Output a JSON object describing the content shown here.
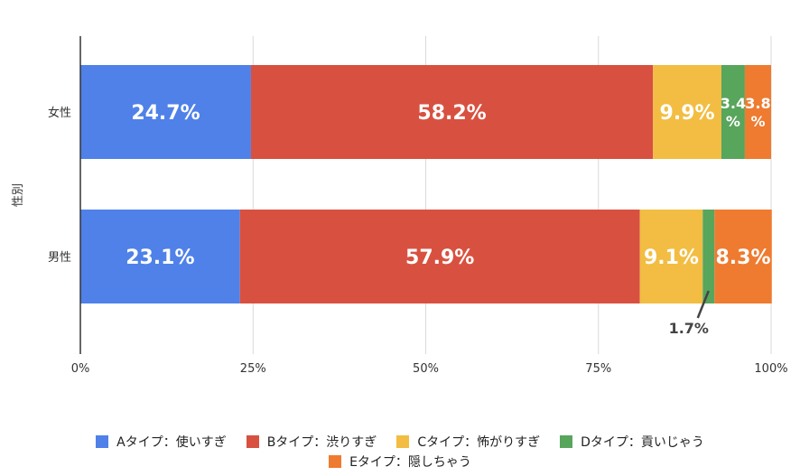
{
  "chart_data": {
    "type": "bar",
    "orientation": "horizontal",
    "stacked": true,
    "ylabel": "性別",
    "categories": [
      "女性",
      "男性"
    ],
    "xlim": [
      0,
      100
    ],
    "x_ticks": [
      "0%",
      "25%",
      "50%",
      "75%",
      "100%"
    ],
    "grid": "vertical",
    "legend_position": "bottom",
    "series": [
      {
        "name": "Aタイプ：使いすぎ",
        "color": "#4f81e8",
        "values": [
          24.7,
          23.1
        ],
        "labels": [
          "24.7%",
          "23.1%"
        ]
      },
      {
        "name": "Bタイプ：渋りすぎ",
        "color": "#d85140",
        "values": [
          58.2,
          57.9
        ],
        "labels": [
          "58.2%",
          "57.9%"
        ]
      },
      {
        "name": "Cタイプ：怖がりすぎ",
        "color": "#f2bd42",
        "values": [
          9.9,
          9.1
        ],
        "labels": [
          "9.9%",
          "9.1%"
        ]
      },
      {
        "name": "Dタイプ：貢いじゃう",
        "color": "#58a55c",
        "values": [
          3.4,
          1.7
        ],
        "labels": [
          "3.4%",
          "1.7%"
        ]
      },
      {
        "name": "Eタイプ：隠しちゃう",
        "color": "#ee7b30",
        "values": [
          3.8,
          8.3
        ],
        "labels": [
          "3.8%",
          "8.3%"
        ]
      }
    ]
  }
}
